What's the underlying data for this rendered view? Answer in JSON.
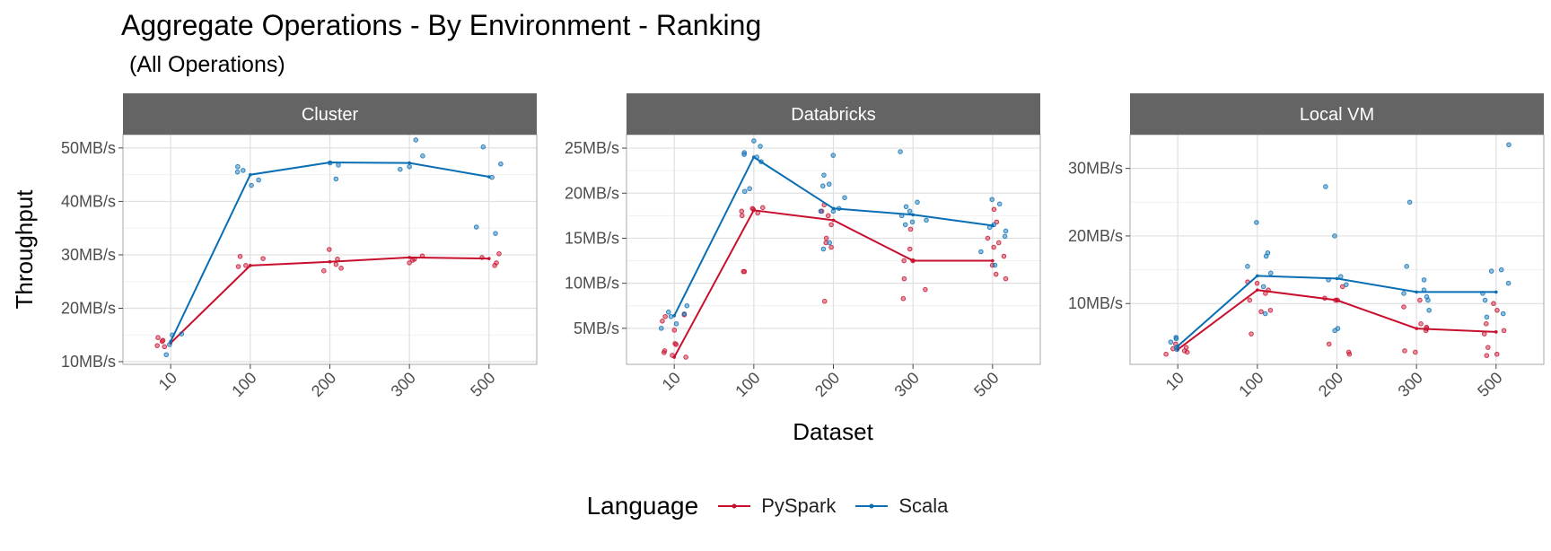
{
  "chart_data": {
    "type": "line",
    "title": "Aggregate Operations - By Environment - Ranking",
    "subtitle": "(All Operations)",
    "xlabel": "Dataset",
    "ylabel": "Throughput",
    "categories": [
      "10",
      "100",
      "200",
      "300",
      "500"
    ],
    "legend": {
      "title": "Language",
      "position": "bottom",
      "entries": [
        {
          "name": "PySpark",
          "color": "#c8102e"
        },
        {
          "name": "Scala",
          "color": "#0a6eb4"
        }
      ]
    },
    "grid": true,
    "facets": [
      {
        "name": "Cluster",
        "ylim": [
          9.5,
          52.5
        ],
        "yticks": [
          10,
          20,
          30,
          40,
          50
        ],
        "ytick_labels": [
          "10MB/s",
          "20MB/s",
          "30MB/s",
          "40MB/s",
          "50MB/s"
        ],
        "series": [
          {
            "name": "PySpark",
            "values": [
              13.5,
              28,
              28.7,
              29.5,
              29.3
            ],
            "points": [
              [
                0,
                13.0
              ],
              [
                0,
                13.8
              ],
              [
                0,
                14.5
              ],
              [
                0,
                12.8
              ],
              [
                0,
                14.0
              ],
              [
                1,
                27.8
              ],
              [
                1,
                29.3
              ],
              [
                1,
                29.7
              ],
              [
                1,
                28.0
              ],
              [
                2,
                27.5
              ],
              [
                2,
                28.2
              ],
              [
                2,
                29.2
              ],
              [
                2,
                31.0
              ],
              [
                2,
                27.0
              ],
              [
                3,
                28.5
              ],
              [
                3,
                29.0
              ],
              [
                3,
                29.8
              ],
              [
                3,
                29.2
              ],
              [
                4,
                28.5
              ],
              [
                4,
                30.2
              ],
              [
                4,
                29.5
              ],
              [
                4,
                28.0
              ]
            ]
          },
          {
            "name": "Scala",
            "values": [
              13.8,
              45,
              47.3,
              47.2,
              44.6
            ],
            "points": [
              [
                0,
                15.0
              ],
              [
                0,
                13.2
              ],
              [
                0,
                11.3
              ],
              [
                0,
                15.2
              ],
              [
                1,
                46.5
              ],
              [
                1,
                44.0
              ],
              [
                1,
                45.5
              ],
              [
                1,
                43.0
              ],
              [
                1,
                45.8
              ],
              [
                2,
                47.2
              ],
              [
                2,
                46.8
              ],
              [
                2,
                44.2
              ],
              [
                3,
                48.5
              ],
              [
                3,
                46.5
              ],
              [
                3,
                51.5
              ],
              [
                3,
                46.0
              ],
              [
                4,
                44.5
              ],
              [
                4,
                47.0
              ],
              [
                4,
                50.2
              ],
              [
                4,
                34.0
              ],
              [
                4,
                35.2
              ]
            ]
          }
        ]
      },
      {
        "name": "Databricks",
        "ylim": [
          1,
          26.5
        ],
        "yticks": [
          5,
          10,
          15,
          20,
          25
        ],
        "ytick_labels": [
          "5MB/s",
          "10MB/s",
          "15MB/s",
          "20MB/s",
          "25MB/s"
        ],
        "series": [
          {
            "name": "PySpark",
            "values": [
              1.8,
              18.1,
              17.0,
              12.5,
              12.5
            ],
            "points": [
              [
                0,
                6.3
              ],
              [
                0,
                4.8
              ],
              [
                0,
                3.2
              ],
              [
                0,
                2.3
              ],
              [
                0,
                2.0
              ],
              [
                0,
                1.8
              ],
              [
                0,
                2.5
              ],
              [
                0,
                5.8
              ],
              [
                0,
                6.5
              ],
              [
                0,
                3.3
              ],
              [
                1,
                18.3
              ],
              [
                1,
                17.8
              ],
              [
                1,
                18.0
              ],
              [
                1,
                11.3
              ],
              [
                1,
                11.3
              ],
              [
                1,
                17.5
              ],
              [
                1,
                18.2
              ],
              [
                1,
                18.4
              ],
              [
                2,
                18.0
              ],
              [
                2,
                17.5
              ],
              [
                2,
                16.5
              ],
              [
                2,
                14.0
              ],
              [
                2,
                14.5
              ],
              [
                2,
                8.0
              ],
              [
                2,
                18.7
              ],
              [
                2,
                15.0
              ],
              [
                3,
                13.8
              ],
              [
                3,
                12.5
              ],
              [
                3,
                10.5
              ],
              [
                3,
                8.3
              ],
              [
                3,
                9.3
              ],
              [
                3,
                16.0
              ],
              [
                3,
                12.5
              ],
              [
                4,
                14.0
              ],
              [
                4,
                13.0
              ],
              [
                4,
                11.0
              ],
              [
                4,
                10.5
              ],
              [
                4,
                18.2
              ],
              [
                4,
                12.0
              ],
              [
                4,
                16.8
              ],
              [
                4,
                14.5
              ],
              [
                4,
                15.0
              ]
            ]
          },
          {
            "name": "Scala",
            "values": [
              6.4,
              24.0,
              18.3,
              17.6,
              16.4
            ],
            "points": [
              [
                0,
                7.5
              ],
              [
                0,
                5.0
              ],
              [
                0,
                6.3
              ],
              [
                0,
                6.8
              ],
              [
                0,
                5.5
              ],
              [
                0,
                6.6
              ],
              [
                1,
                25.2
              ],
              [
                1,
                24.5
              ],
              [
                1,
                24.0
              ],
              [
                1,
                23.5
              ],
              [
                1,
                20.5
              ],
              [
                1,
                25.8
              ],
              [
                1,
                24.3
              ],
              [
                1,
                20.2
              ],
              [
                2,
                24.2
              ],
              [
                2,
                22.0
              ],
              [
                2,
                21.0
              ],
              [
                2,
                19.5
              ],
              [
                2,
                18.3
              ],
              [
                2,
                18.0
              ],
              [
                2,
                13.8
              ],
              [
                2,
                14.5
              ],
              [
                2,
                20.8
              ],
              [
                2,
                18.0
              ],
              [
                3,
                24.6
              ],
              [
                3,
                19.0
              ],
              [
                3,
                18.5
              ],
              [
                3,
                17.5
              ],
              [
                3,
                16.8
              ],
              [
                3,
                17.0
              ],
              [
                3,
                18.0
              ],
              [
                3,
                16.5
              ],
              [
                4,
                19.3
              ],
              [
                4,
                18.8
              ],
              [
                4,
                16.5
              ],
              [
                4,
                13.5
              ],
              [
                4,
                12.0
              ],
              [
                4,
                15.8
              ],
              [
                4,
                16.2
              ],
              [
                4,
                15.2
              ]
            ]
          }
        ]
      },
      {
        "name": "Local VM",
        "ylim": [
          1,
          35
        ],
        "yticks": [
          10,
          20,
          30
        ],
        "ytick_labels": [
          "10MB/s",
          "20MB/s",
          "30MB/s"
        ],
        "series": [
          {
            "name": "PySpark",
            "values": [
              3.2,
              12.0,
              10.5,
              6.3,
              5.8
            ],
            "points": [
              [
                0,
                3.5
              ],
              [
                0,
                2.8
              ],
              [
                0,
                3.0
              ],
              [
                0,
                2.5
              ],
              [
                0,
                4.0
              ],
              [
                0,
                3.3
              ],
              [
                1,
                13.0
              ],
              [
                1,
                12.0
              ],
              [
                1,
                10.5
              ],
              [
                1,
                9.0
              ],
              [
                1,
                5.5
              ],
              [
                1,
                11.5
              ],
              [
                1,
                13.2
              ],
              [
                1,
                8.8
              ],
              [
                2,
                10.8
              ],
              [
                2,
                10.5
              ],
              [
                2,
                2.8
              ],
              [
                2,
                2.5
              ],
              [
                2,
                10.5
              ],
              [
                2,
                12.5
              ],
              [
                2,
                4.0
              ],
              [
                3,
                10.5
              ],
              [
                3,
                9.5
              ],
              [
                3,
                7.0
              ],
              [
                3,
                6.5
              ],
              [
                3,
                6.0
              ],
              [
                3,
                2.8
              ],
              [
                3,
                3.0
              ],
              [
                3,
                6.3
              ],
              [
                4,
                10.0
              ],
              [
                4,
                9.0
              ],
              [
                4,
                7.0
              ],
              [
                4,
                5.5
              ],
              [
                4,
                3.5
              ],
              [
                4,
                2.5
              ],
              [
                4,
                2.3
              ],
              [
                4,
                6.0
              ]
            ]
          },
          {
            "name": "Scala",
            "values": [
              3.7,
              14.1,
              13.7,
              11.7,
              11.7
            ],
            "points": [
              [
                0,
                5.0
              ],
              [
                0,
                4.3
              ],
              [
                0,
                3.5
              ],
              [
                0,
                4.8
              ],
              [
                0,
                3.2
              ],
              [
                1,
                22.0
              ],
              [
                1,
                17.5
              ],
              [
                1,
                17.0
              ],
              [
                1,
                14.5
              ],
              [
                1,
                15.5
              ],
              [
                1,
                12.5
              ],
              [
                1,
                8.5
              ],
              [
                2,
                27.3
              ],
              [
                2,
                20.0
              ],
              [
                2,
                13.5
              ],
              [
                2,
                14.0
              ],
              [
                2,
                12.8
              ],
              [
                2,
                6.3
              ],
              [
                2,
                6.0
              ],
              [
                3,
                25.0
              ],
              [
                3,
                15.5
              ],
              [
                3,
                13.5
              ],
              [
                3,
                11.5
              ],
              [
                3,
                12.0
              ],
              [
                3,
                10.5
              ],
              [
                3,
                11.0
              ],
              [
                3,
                9.0
              ],
              [
                4,
                33.5
              ],
              [
                4,
                15.0
              ],
              [
                4,
                14.8
              ],
              [
                4,
                13.0
              ],
              [
                4,
                11.5
              ],
              [
                4,
                10.5
              ],
              [
                4,
                8.5
              ],
              [
                4,
                8.0
              ]
            ]
          }
        ]
      }
    ]
  }
}
